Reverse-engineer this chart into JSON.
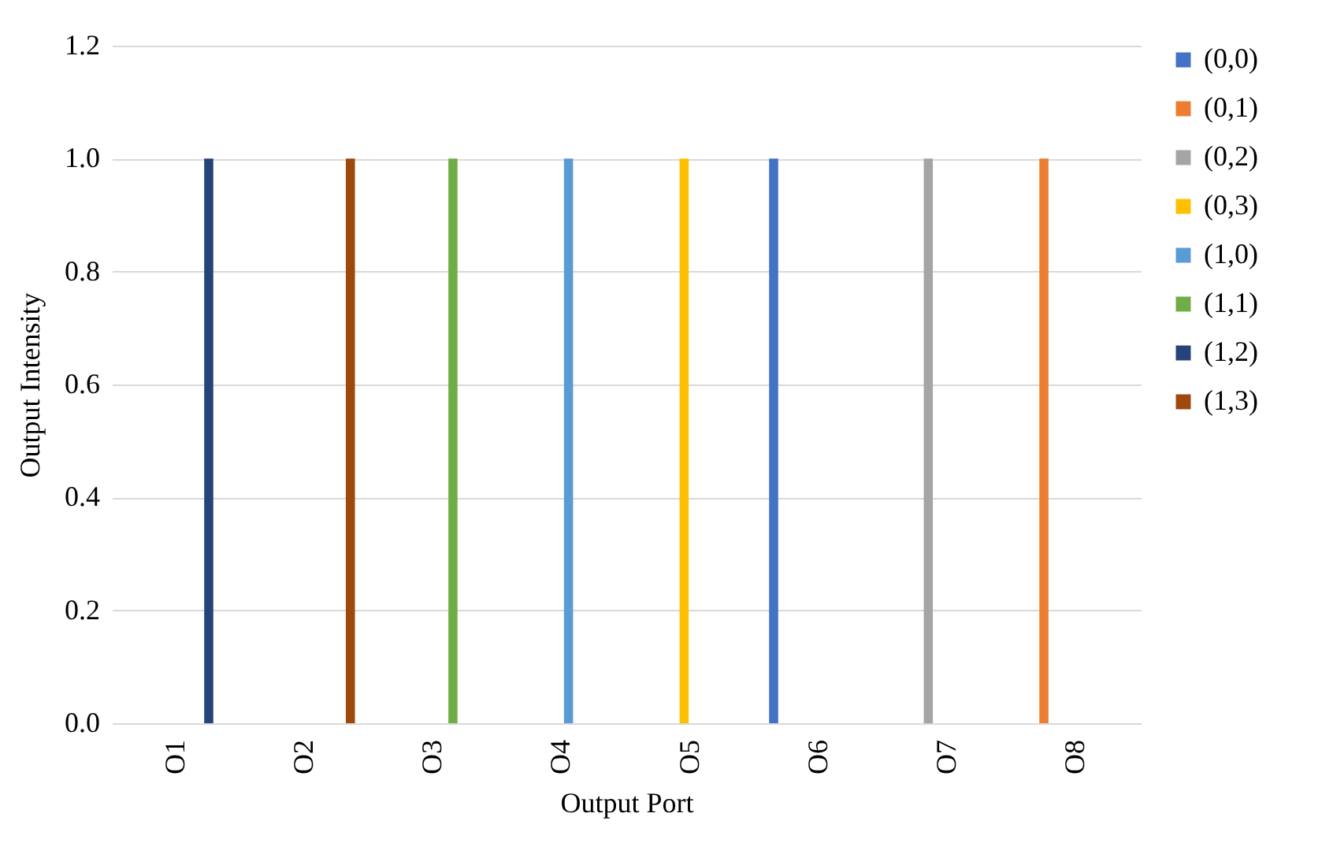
{
  "chart_data": {
    "type": "bar",
    "xlabel": "Output Port",
    "ylabel": "Output Intensity",
    "categories": [
      "O1",
      "O2",
      "O3",
      "O4",
      "O5",
      "O6",
      "O7",
      "O8"
    ],
    "series": [
      {
        "name": "(0,0)",
        "color": "#4472c4",
        "values": [
          0,
          0,
          0,
          0,
          0,
          1,
          0,
          0
        ]
      },
      {
        "name": "(0,1)",
        "color": "#ed7d31",
        "values": [
          0,
          0,
          0,
          0,
          0,
          0,
          0,
          1
        ]
      },
      {
        "name": "(0,2)",
        "color": "#a5a5a5",
        "values": [
          0,
          0,
          0,
          0,
          0,
          0,
          1,
          0
        ]
      },
      {
        "name": "(0,3)",
        "color": "#ffc000",
        "values": [
          0,
          0,
          0,
          0,
          1,
          0,
          0,
          0
        ]
      },
      {
        "name": "(1,0)",
        "color": "#5b9bd5",
        "values": [
          0,
          0,
          0,
          1,
          0,
          0,
          0,
          0
        ]
      },
      {
        "name": "(1,1)",
        "color": "#70ad47",
        "values": [
          0,
          0,
          1,
          0,
          0,
          0,
          0,
          0
        ]
      },
      {
        "name": "(1,2)",
        "color": "#264478",
        "values": [
          1,
          0,
          0,
          0,
          0,
          0,
          0,
          0
        ]
      },
      {
        "name": "(1,3)",
        "color": "#9e480e",
        "values": [
          0,
          1,
          0,
          0,
          0,
          0,
          0,
          0
        ]
      }
    ],
    "ylim": [
      0,
      1.2
    ],
    "yticks": [
      {
        "value": 0,
        "label": "0.0"
      },
      {
        "value": 0.2,
        "label": "0.2"
      },
      {
        "value": 0.4,
        "label": "0.4"
      },
      {
        "value": 0.6,
        "label": "0.6"
      },
      {
        "value": 0.8,
        "label": "0.8"
      },
      {
        "value": 1,
        "label": "1.0"
      },
      {
        "value": 1.2,
        "label": "1.2"
      }
    ],
    "grid": "y",
    "legend": "right"
  }
}
